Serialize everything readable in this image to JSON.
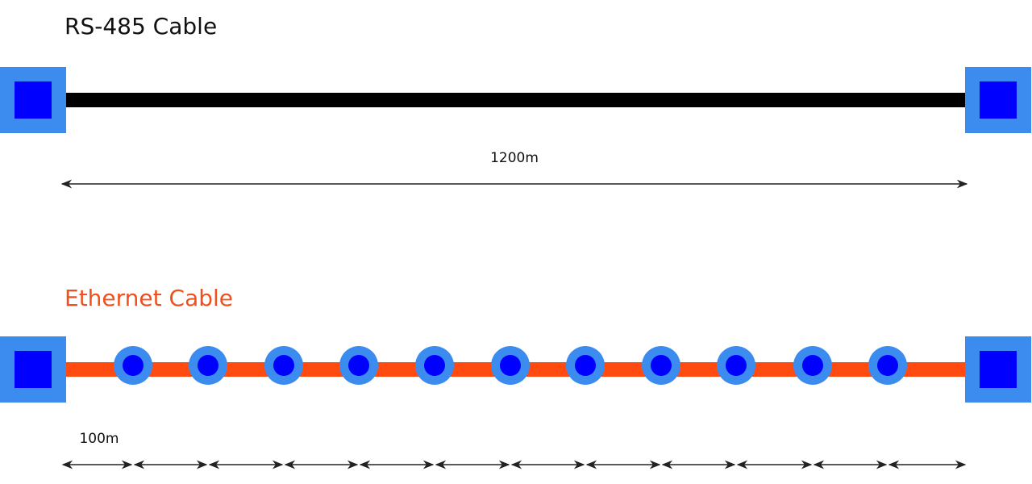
{
  "rs485": {
    "title": "RS-485 Cable",
    "length_label": "1200m"
  },
  "ethernet": {
    "title": "Ethernet Cable",
    "segment_label": "100m"
  }
}
